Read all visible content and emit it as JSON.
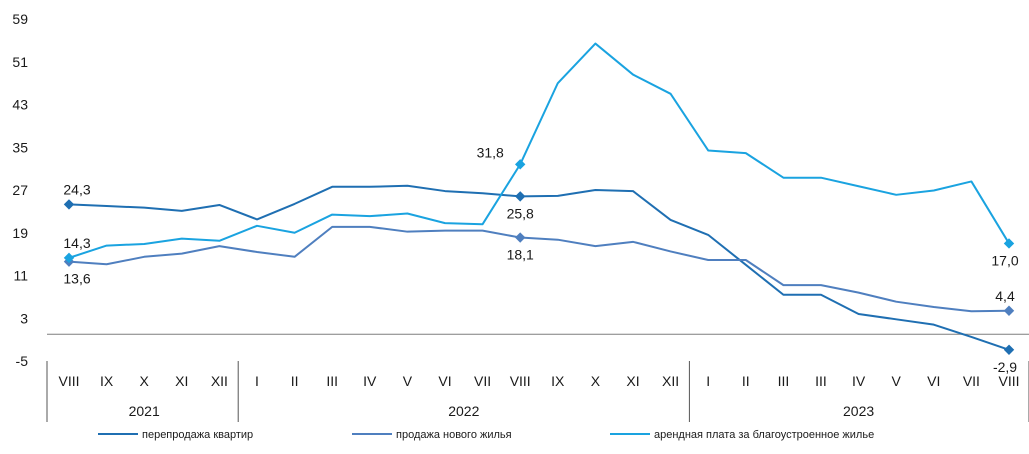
{
  "chart_data": {
    "type": "line",
    "yticks": [
      "59",
      "51",
      "43",
      "35",
      "27",
      "19",
      "11",
      "3",
      "-5"
    ],
    "ylim": [
      -5,
      59
    ],
    "categories": [
      "VIII",
      "IX",
      "X",
      "XI",
      "XII",
      "I",
      "II",
      "III",
      "IV",
      "V",
      "VI",
      "VII",
      "VIII",
      "IX",
      "X",
      "XI",
      "XII",
      "I",
      "II",
      "III",
      "III",
      "IV",
      "V",
      "VI",
      "VII",
      "VIII"
    ],
    "years": [
      {
        "label": "2021",
        "from": 0,
        "to": 4
      },
      {
        "label": "2022",
        "from": 5,
        "to": 16
      },
      {
        "label": "2023",
        "from": 17,
        "to": 25
      }
    ],
    "series": [
      {
        "name": "перепродажа квартир",
        "color": "#1f6fb2",
        "values": [
          24.3,
          24.0,
          23.7,
          23.1,
          24.2,
          21.5,
          24.4,
          27.6,
          27.6,
          27.8,
          26.8,
          26.4,
          25.8,
          25.9,
          27.0,
          26.8,
          21.4,
          18.6,
          13.0,
          7.4,
          7.4,
          3.8,
          2.8,
          1.8,
          -0.5,
          -2.9
        ],
        "labels": [
          {
            "index": 0,
            "text": "24,3",
            "pos": "above"
          },
          {
            "index": 12,
            "text": "25,8",
            "pos": "below"
          },
          {
            "index": 25,
            "text": "-2,9",
            "pos": "below"
          }
        ]
      },
      {
        "name": "продажа нового жилья",
        "color": "#4f7fbf",
        "values": [
          13.6,
          13.1,
          14.5,
          15.1,
          16.5,
          15.4,
          14.5,
          20.1,
          20.1,
          19.2,
          19.4,
          19.4,
          18.1,
          17.7,
          16.5,
          17.3,
          15.5,
          13.9,
          13.9,
          9.2,
          9.2,
          7.8,
          6.1,
          5.1,
          4.3,
          4.4
        ],
        "labels": [
          {
            "index": 0,
            "text": "13,6",
            "pos": "below"
          },
          {
            "index": 12,
            "text": "18,1",
            "pos": "below"
          },
          {
            "index": 25,
            "text": "4,4",
            "pos": "above"
          }
        ]
      },
      {
        "name": "арендная плата за благоустроенное жилье",
        "color": "#1aa3e0",
        "values": [
          14.3,
          16.6,
          16.9,
          17.9,
          17.5,
          20.3,
          19.0,
          22.4,
          22.1,
          22.6,
          20.8,
          20.6,
          31.8,
          47.0,
          54.4,
          48.6,
          45.0,
          34.4,
          33.9,
          29.3,
          29.3,
          27.7,
          26.1,
          26.9,
          28.6,
          17.0
        ],
        "labels": [
          {
            "index": 0,
            "text": "14,3",
            "pos": "above"
          },
          {
            "index": 12,
            "text": "31,8",
            "pos": "above-left"
          },
          {
            "index": 25,
            "text": "17,0",
            "pos": "below"
          }
        ]
      }
    ],
    "markers": [
      12,
      25
    ],
    "grid": false,
    "legend_position": "bottom"
  },
  "legend": [
    {
      "label": "перепродажа квартир",
      "color": "#1f6fb2"
    },
    {
      "label": "продажа нового жилья",
      "color": "#4f7fbf"
    },
    {
      "label": "арендная плата за благоустроенное жилье",
      "color": "#1aa3e0"
    }
  ]
}
